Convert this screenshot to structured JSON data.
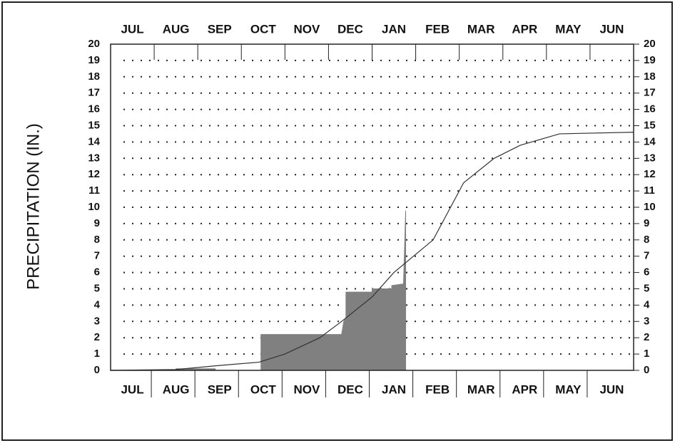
{
  "chart_data": {
    "type": "area",
    "y_label": "PRECIPITATION (IN.)",
    "categories": [
      "JUL",
      "AUG",
      "SEP",
      "OCT",
      "NOV",
      "DEC",
      "JAN",
      "FEB",
      "MAR",
      "APR",
      "MAY",
      "JUN"
    ],
    "xlim": [
      0,
      12
    ],
    "ylim": [
      0,
      20
    ],
    "yticks": [
      0,
      1,
      2,
      3,
      4,
      5,
      6,
      7,
      8,
      9,
      10,
      11,
      12,
      13,
      14,
      15,
      16,
      17,
      18,
      19,
      20
    ],
    "grid": true,
    "series": [
      {
        "style": "area",
        "color": "#808080",
        "x": [
          1.5,
          2.4,
          2.4,
          3.45,
          3.45,
          5.3,
          5.35,
          5.4,
          5.4,
          6.0,
          6.0,
          6.45,
          6.45,
          6.72,
          6.77
        ],
        "values": [
          0.1,
          0.1,
          0,
          0,
          2.2,
          2.2,
          3.0,
          3.2,
          4.8,
          4.8,
          5.0,
          5.0,
          5.2,
          5.3,
          9.8
        ]
      },
      {
        "style": "line",
        "color": "#333333",
        "x": [
          0,
          1.5,
          2.5,
          3.4,
          4.0,
          4.8,
          5.3,
          6.0,
          6.5,
          7.4,
          8.1,
          8.8,
          9.4,
          10.3,
          12
        ],
        "values": [
          0,
          0.05,
          0.3,
          0.5,
          1.0,
          2.0,
          3.0,
          4.5,
          6.0,
          8.0,
          11.5,
          13.0,
          13.8,
          14.5,
          14.6
        ]
      }
    ]
  }
}
